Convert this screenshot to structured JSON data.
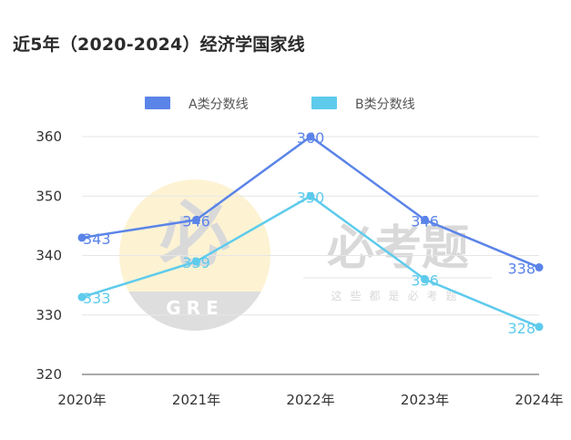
{
  "title": "近5年（2020-2024）经济学国家线",
  "watermark": {
    "logo_char": "必",
    "logo_text": "GRE",
    "brand": "必考题",
    "slogan": "这些都是必考题"
  },
  "colors": {
    "series_a": "#5b84e8",
    "series_b": "#5ecbec",
    "grid": "#e6e6e6",
    "axis": "#555555",
    "watermark_yellow": "#fdf3d3",
    "watermark_gray": "#dedede"
  },
  "chart_data": {
    "type": "line",
    "categories": [
      "2020年",
      "2021年",
      "2022年",
      "2023年",
      "2024年"
    ],
    "series": [
      {
        "name": "A类分数线",
        "values": [
          343,
          346,
          360,
          346,
          338
        ]
      },
      {
        "name": "B类分数线",
        "values": [
          333,
          339,
          350,
          336,
          328
        ]
      }
    ],
    "y_ticks": [
      320,
      330,
      340,
      350,
      360
    ],
    "ylim": [
      320,
      360
    ],
    "grid": true,
    "legend_position": "top-center",
    "data_labels": true
  }
}
